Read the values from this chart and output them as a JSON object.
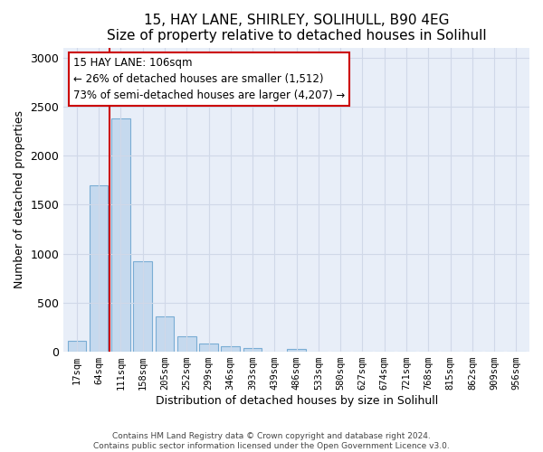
{
  "title_line1": "15, HAY LANE, SHIRLEY, SOLIHULL, B90 4EG",
  "title_line2": "Size of property relative to detached houses in Solihull",
  "xlabel": "Distribution of detached houses by size in Solihull",
  "ylabel": "Number of detached properties",
  "footnote1": "Contains HM Land Registry data © Crown copyright and database right 2024.",
  "footnote2": "Contains public sector information licensed under the Open Government Licence v3.0.",
  "bar_labels": [
    "17sqm",
    "64sqm",
    "111sqm",
    "158sqm",
    "205sqm",
    "252sqm",
    "299sqm",
    "346sqm",
    "393sqm",
    "439sqm",
    "486sqm",
    "533sqm",
    "580sqm",
    "627sqm",
    "674sqm",
    "721sqm",
    "768sqm",
    "815sqm",
    "862sqm",
    "909sqm",
    "956sqm"
  ],
  "bar_values": [
    110,
    1700,
    2380,
    920,
    360,
    155,
    80,
    55,
    35,
    5,
    30,
    0,
    0,
    0,
    0,
    0,
    0,
    0,
    0,
    0,
    0
  ],
  "bar_color": "#c5d9ee",
  "bar_edgecolor": "#7aadd4",
  "vline_color": "#cc0000",
  "annotation_text": "15 HAY LANE: 106sqm\n← 26% of detached houses are smaller (1,512)\n73% of semi-detached houses are larger (4,207) →",
  "box_facecolor": "#ffffff",
  "box_edgecolor": "#cc0000",
  "ylim": [
    0,
    3100
  ],
  "yticks": [
    0,
    500,
    1000,
    1500,
    2000,
    2500,
    3000
  ],
  "grid_color": "#d0d8e8",
  "bg_color": "#e8eef8",
  "title_fontsize": 11,
  "label_fontsize": 9,
  "footnote_fontsize": 6.5
}
